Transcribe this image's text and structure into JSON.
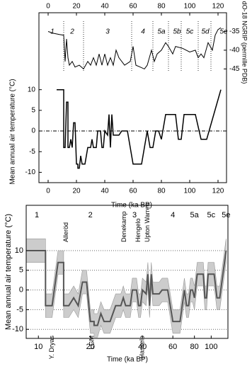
{
  "chart_data": [
    {
      "type": "line",
      "xlabel": "Time (ka BP)",
      "ylabel": "Mean annual air temperature (°C)",
      "y2label": "dO-18 NGRIP (permille PDB)",
      "xlim": [
        -6.5,
        126
      ],
      "xticks": [
        0,
        20,
        40,
        60,
        80,
        100,
        120
      ],
      "ylim": [
        -12.5,
        12
      ],
      "yticks": [
        -10,
        -5,
        0,
        5,
        10
      ],
      "y2lim": [
        -45.5,
        -30
      ],
      "y2ticks": [
        -45,
        -40,
        -35
      ],
      "zero_line": true,
      "stages": [
        {
          "label": "1",
          "x": 3
        },
        {
          "label": "2",
          "x": 17
        },
        {
          "label": "3",
          "x": 42
        },
        {
          "label": "4",
          "x": 67
        },
        {
          "label": "5a",
          "x": 80
        },
        {
          "label": "5b",
          "x": 91
        },
        {
          "label": "5c",
          "x": 100
        },
        {
          "label": "5d",
          "x": 111
        },
        {
          "label": "5e",
          "x": 124
        }
      ],
      "stage_boundaries": [
        11,
        25,
        59,
        74,
        85,
        94,
        106,
        115
      ],
      "series": [
        {
          "color": "#000000",
          "x": [
            6,
            11,
            11,
            12,
            13,
            14,
            14,
            15,
            16,
            17,
            18,
            19,
            20,
            21,
            21,
            22,
            23,
            24,
            26,
            28,
            30,
            31,
            32,
            34,
            35,
            37,
            38,
            39,
            40,
            42,
            43,
            44,
            45,
            46,
            50,
            52,
            56,
            60,
            66,
            70,
            72,
            74,
            76,
            78,
            80,
            83,
            90,
            92,
            94,
            96,
            104,
            108,
            112,
            122
          ],
          "values": [
            10,
            10,
            -4,
            -4,
            7,
            7,
            -4,
            -4,
            -2,
            -4,
            2,
            2,
            -8,
            -8,
            -9,
            -9,
            -6,
            -8,
            -8,
            -4,
            -4,
            -2,
            -4,
            -4,
            0,
            0,
            -4,
            -4,
            0,
            -1,
            4,
            -4,
            4,
            -1,
            -1,
            0,
            0,
            -8,
            -8,
            0,
            -4,
            -4,
            0,
            0,
            -2,
            4,
            4,
            -2,
            -2,
            4,
            4,
            -2,
            -2,
            10
          ]
        },
        {
          "color": "#000000",
          "axis": "y2",
          "x": [
            0,
            4,
            8,
            11,
            12,
            13,
            14,
            15,
            17,
            19,
            22,
            25,
            28,
            30,
            32,
            34,
            36,
            38,
            40,
            42,
            44,
            46,
            48,
            50,
            54,
            58,
            60,
            62,
            65,
            68,
            70,
            73,
            75,
            77,
            80,
            83,
            85,
            88,
            90,
            95,
            100,
            104,
            106,
            108,
            110,
            113,
            116,
            118,
            120,
            122
          ],
          "values": [
            -35,
            -35.5,
            -35.8,
            -36,
            -43,
            -37,
            -42,
            -44,
            -43,
            -44.5,
            -44,
            -45,
            -43,
            -44,
            -42,
            -44,
            -41,
            -44,
            -41,
            -44,
            -42,
            -44,
            -40,
            -42,
            -44,
            -43,
            -39,
            -44,
            -44.5,
            -45,
            -44,
            -40,
            -43,
            -41,
            -40,
            -38,
            -39,
            -41,
            -39,
            -39.5,
            -40.5,
            -40,
            -42,
            -41,
            -42,
            -38,
            -40,
            -36,
            -34.5,
            -34
          ]
        }
      ]
    },
    {
      "type": "band-line",
      "xlabel": "Time (ka BP)",
      "ylabel": "Mean annual air temperature (°C)",
      "xscale": "log",
      "xlim": [
        8.5,
        125
      ],
      "xticks": [
        10,
        20,
        40,
        60,
        80,
        100
      ],
      "ylim": [
        -12.3,
        21.5
      ],
      "yticks": [
        -10,
        -5,
        0,
        5,
        10
      ],
      "grid": true,
      "stages": [
        {
          "label": "1",
          "x": 9.8
        },
        {
          "label": "2",
          "x": 20
        },
        {
          "label": "3",
          "x": 36
        },
        {
          "label": "4",
          "x": 60
        },
        {
          "label": "5a",
          "x": 80
        },
        {
          "label": "5c",
          "x": 100
        },
        {
          "label": "5e",
          "x": 122
        }
      ],
      "annotations": [
        {
          "text": "Alleröd",
          "x": 14.5,
          "position": "top"
        },
        {
          "text": "Y. Dryas",
          "x": 12,
          "position": "bottom"
        },
        {
          "text": "LGM",
          "x": 20.5,
          "position": "bottom"
        },
        {
          "text": "Denekamp",
          "x": 31.5,
          "position": "top"
        },
        {
          "text": "Hengelo",
          "x": 38,
          "position": "top"
        },
        {
          "text": "Upton Warren",
          "x": 43,
          "position": "top"
        },
        {
          "text": "Hasselo",
          "x": 40,
          "position": "bottom"
        }
      ],
      "x": [
        8.5,
        11,
        11,
        12,
        13,
        14,
        14,
        15,
        16,
        17,
        18,
        19,
        20,
        21,
        21,
        22,
        23,
        24,
        26,
        28,
        30,
        31,
        32,
        34,
        35,
        37,
        38,
        39,
        40,
        42,
        43,
        44,
        45,
        46,
        50,
        52,
        56,
        60,
        66,
        70,
        72,
        74,
        76,
        78,
        80,
        83,
        90,
        92,
        94,
        96,
        104,
        108,
        112,
        122
      ],
      "values": [
        10,
        10,
        -4,
        -4,
        7,
        7,
        -4,
        -4,
        -2,
        -4,
        2,
        2,
        -8,
        -8,
        -9,
        -9,
        -6,
        -8,
        -8,
        -4,
        -4,
        -2,
        -4,
        -4,
        0,
        0,
        -4,
        -4,
        0,
        -1,
        4,
        -4,
        4,
        -1,
        -1,
        0,
        0,
        -8,
        -8,
        0,
        -4,
        -4,
        0,
        0,
        -2,
        4,
        4,
        -2,
        -2,
        4,
        4,
        -2,
        -2,
        10
      ],
      "upper": [
        13,
        13,
        -1,
        -1,
        10,
        10,
        -1,
        -1,
        1,
        -1,
        5,
        5,
        -5,
        -5,
        -6,
        -6,
        -3,
        -5,
        -5,
        -1,
        -1,
        1,
        -1,
        -1,
        3,
        3,
        -1,
        -1,
        3,
        2,
        7,
        -1,
        7,
        2,
        2,
        3,
        3,
        -5,
        -5,
        3,
        -1,
        -1,
        3,
        3,
        1,
        7,
        7,
        1,
        1,
        7,
        7,
        1,
        1,
        13
      ],
      "lower": [
        7,
        7,
        -7,
        -7,
        4,
        4,
        -7,
        -7,
        -5,
        -7,
        -1,
        -1,
        -11,
        -11,
        -12,
        -12,
        -9,
        -11,
        -11,
        -7,
        -7,
        -5,
        -7,
        -7,
        -3,
        -3,
        -7,
        -7,
        -3,
        -4,
        1,
        -7,
        1,
        -4,
        -4,
        -3,
        -3,
        -11,
        -11,
        -3,
        -7,
        -7,
        -3,
        -3,
        -5,
        1,
        1,
        -5,
        -5,
        1,
        1,
        -5,
        -5,
        7
      ],
      "line_color": "#555555",
      "band_color": "#cccccc"
    }
  ]
}
